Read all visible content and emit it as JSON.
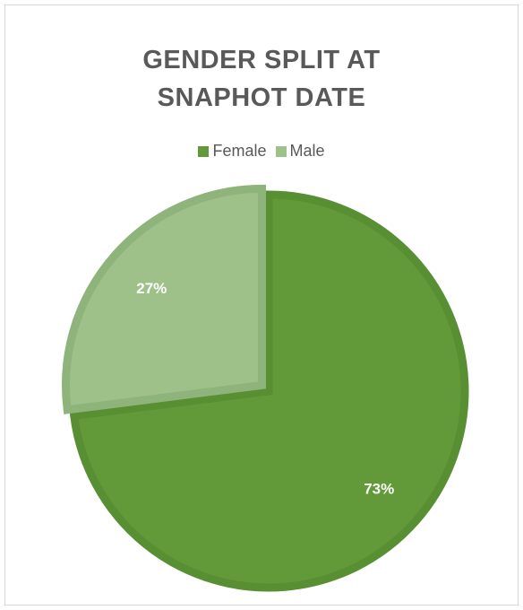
{
  "chart_data": {
    "type": "pie",
    "title": "GENDER SPLIT AT SNAPHOT DATE",
    "title_lines": [
      "GENDER SPLIT AT",
      "SNAPHOT DATE"
    ],
    "categories": [
      "Female",
      "Male"
    ],
    "values": [
      73,
      27
    ],
    "data_labels": [
      "73%",
      "27%"
    ],
    "colors": [
      "#629a3a",
      "#9ec18a"
    ],
    "edge_colors": [
      "#588f33",
      "#8fb47b"
    ],
    "legend_position": "top"
  }
}
